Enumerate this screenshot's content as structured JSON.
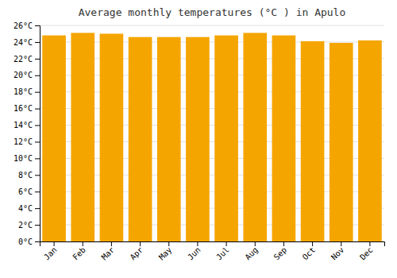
{
  "chart_data": {
    "type": "bar",
    "title": "Average monthly temperatures (°C ) in Apulo",
    "categories": [
      "Jan",
      "Feb",
      "Mar",
      "Apr",
      "May",
      "Jun",
      "Jul",
      "Aug",
      "Sep",
      "Oct",
      "Nov",
      "Dec"
    ],
    "values": [
      24.8,
      25.1,
      25.0,
      24.6,
      24.6,
      24.6,
      24.8,
      25.1,
      24.8,
      24.1,
      23.9,
      24.2
    ],
    "color": "#F5A500",
    "ylim": [
      0,
      26
    ],
    "yticks": [
      {
        "value": 0,
        "label": "0°C"
      },
      {
        "value": 2,
        "label": "2°C"
      },
      {
        "value": 4,
        "label": "4°C"
      },
      {
        "value": 6,
        "label": "6°C"
      },
      {
        "value": 8,
        "label": "8°C"
      },
      {
        "value": 10,
        "label": "10°C"
      },
      {
        "value": 12,
        "label": "12°C"
      },
      {
        "value": 14,
        "label": "14°C"
      },
      {
        "value": 16,
        "label": "16°C"
      },
      {
        "value": 18,
        "label": "18°C"
      },
      {
        "value": 20,
        "label": "20°C"
      },
      {
        "value": 22,
        "label": "22°C"
      },
      {
        "value": 24,
        "label": "24°C"
      },
      {
        "value": 26,
        "label": "26°C"
      }
    ],
    "grid": true
  }
}
